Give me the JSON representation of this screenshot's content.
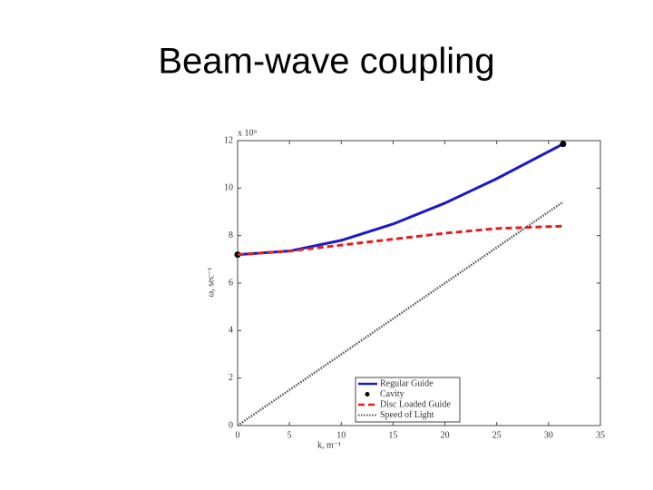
{
  "chart_data": {
    "type": "line",
    "title": "Beam-wave coupling",
    "xlabel": "k, m⁻¹",
    "ylabel": "ω, sec⁻¹",
    "y_multiplier": "x 10⁹",
    "xlim": [
      0,
      35
    ],
    "xticks": [
      0,
      5,
      10,
      15,
      20,
      25,
      30,
      35
    ],
    "ylim": [
      0,
      12
    ],
    "yticks": [
      0,
      2,
      4,
      6,
      8,
      10,
      12
    ],
    "legend": "lower right",
    "series": [
      {
        "name": "Regular Guide",
        "style": "solid",
        "color": "#1a1acc",
        "x": [
          0,
          5,
          10,
          15,
          20,
          25,
          31.4
        ],
        "values": [
          7.2,
          7.35,
          7.8,
          8.49,
          9.37,
          10.4,
          11.86
        ]
      },
      {
        "name": "Cavity",
        "style": "dot",
        "color": "#000000",
        "x": [
          0,
          31.4
        ],
        "values": [
          7.2,
          11.86
        ]
      },
      {
        "name": "Disc Loaded Guide",
        "style": "dashed",
        "color": "#e02020",
        "x": [
          0,
          5,
          10,
          15,
          20,
          25,
          31.4
        ],
        "values": [
          7.2,
          7.35,
          7.6,
          7.85,
          8.1,
          8.3,
          8.4
        ]
      },
      {
        "name": "Speed of Light",
        "style": "dotted",
        "color": "#555555",
        "x": [
          0,
          5,
          10,
          15,
          20,
          25,
          31.4
        ],
        "values": [
          0,
          1.5,
          3,
          4.5,
          6,
          7.5,
          9.42
        ]
      }
    ]
  }
}
